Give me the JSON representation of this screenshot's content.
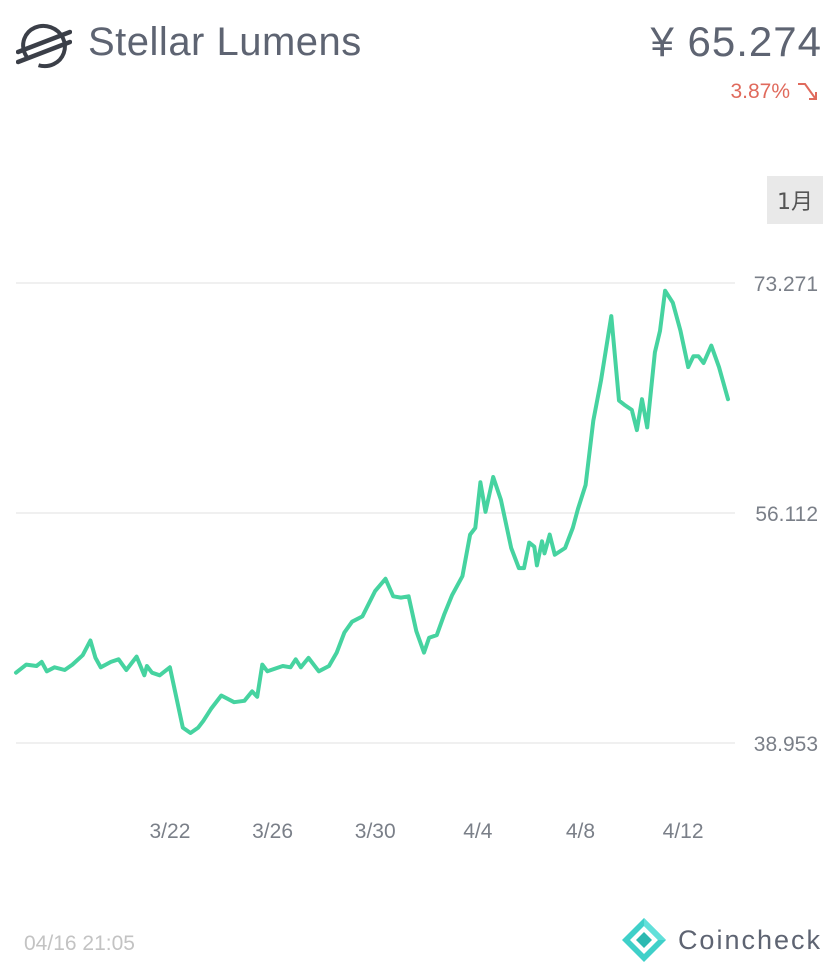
{
  "header": {
    "coin_name": "Stellar Lumens",
    "price": "¥ 65.274",
    "change": "3.87%",
    "logo_icon": "stellar-logo-icon",
    "change_icon": "trend-down-arrow-icon",
    "change_color": "#e06a5c"
  },
  "controls": {
    "period_label": "1月"
  },
  "footer": {
    "timestamp": "04/16 21:05",
    "brand_name": "Coincheck",
    "brand_icon": "coincheck-diamond-icon"
  },
  "chart_data": {
    "type": "line",
    "line_color": "#46d3a0",
    "grid": true,
    "ylim": [
      38.953,
      73.271
    ],
    "y_ticks": [
      "73.271",
      "56.112",
      "38.953"
    ],
    "y_tick_values": [
      73.271,
      56.112,
      38.953
    ],
    "x_ticks": [
      "3/22",
      "3/26",
      "3/30",
      "4/4",
      "4/8",
      "4/12"
    ],
    "x_tick_values": [
      6,
      10,
      14,
      18,
      22,
      26
    ],
    "xlim": [
      0,
      27.75
    ],
    "series": [
      {
        "x": [
          0,
          0.4,
          0.8,
          1.0,
          1.2,
          1.5,
          1.9,
          2.2,
          2.6,
          2.9,
          3.1,
          3.3,
          3.5,
          3.7,
          4.0,
          4.3,
          4.7,
          5.0,
          5.1,
          5.3,
          5.6,
          6.0,
          6.5,
          6.8,
          7.1,
          7.3,
          7.6,
          8.0,
          8.5,
          8.9,
          9.2,
          9.4,
          9.6,
          9.8,
          10.1,
          10.4,
          10.7,
          10.9,
          11.1,
          11.4,
          11.8,
          12.2,
          12.5,
          12.8,
          13.1,
          13.5,
          14.0,
          14.4,
          14.7,
          15.0,
          15.3,
          15.6,
          15.9,
          16.1,
          16.4,
          16.7,
          17.0,
          17.4,
          17.7,
          17.9,
          18.1,
          18.3,
          18.6,
          18.9,
          19.3,
          19.6,
          19.8,
          20.0,
          20.2,
          20.3,
          20.5,
          20.6,
          20.8,
          21.0,
          21.4,
          21.7,
          21.9,
          22.2,
          22.5,
          22.8,
          23.2,
          23.5,
          23.7,
          24.0,
          24.2,
          24.4,
          24.6,
          24.9,
          25.1,
          25.3,
          25.6,
          25.9,
          26.2,
          26.4,
          26.6,
          26.8,
          27.1,
          27.4,
          27.75
        ],
        "values": [
          44.2,
          44.8,
          44.7,
          45.0,
          44.3,
          44.6,
          44.4,
          44.8,
          45.5,
          46.6,
          45.3,
          44.6,
          44.8,
          45.0,
          45.2,
          44.4,
          45.4,
          44.0,
          44.7,
          44.2,
          44.0,
          44.6,
          40.1,
          39.7,
          40.1,
          40.6,
          41.5,
          42.5,
          42.0,
          42.1,
          42.8,
          42.4,
          44.8,
          44.3,
          44.5,
          44.7,
          44.6,
          45.2,
          44.6,
          45.3,
          44.3,
          44.7,
          45.7,
          47.2,
          48.0,
          48.4,
          50.3,
          51.2,
          49.9,
          49.8,
          49.9,
          47.3,
          45.7,
          46.8,
          47.0,
          48.6,
          50.0,
          51.4,
          54.5,
          55.0,
          58.4,
          56.2,
          58.8,
          57.1,
          53.5,
          52.0,
          52.0,
          53.9,
          53.6,
          52.2,
          54.0,
          53.1,
          54.5,
          53.0,
          53.5,
          55.0,
          56.4,
          58.2,
          63.0,
          66.0,
          70.8,
          64.5,
          64.2,
          63.8,
          62.3,
          64.6,
          62.5,
          68.1,
          69.7,
          72.7,
          71.8,
          69.7,
          67.0,
          67.8,
          67.8,
          67.3,
          68.6,
          67.0,
          64.6
        ]
      }
    ]
  }
}
